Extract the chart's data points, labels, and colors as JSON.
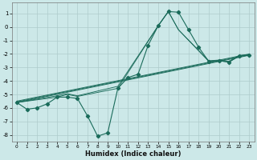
{
  "xlabel": "Humidex (Indice chaleur)",
  "bg_color": "#cce8e8",
  "grid_color": "#aecccc",
  "line_color": "#1a6b5a",
  "xlim": [
    -0.5,
    23.5
  ],
  "ylim": [
    -8.5,
    1.8
  ],
  "xticks": [
    0,
    1,
    2,
    3,
    4,
    5,
    6,
    7,
    8,
    9,
    10,
    11,
    12,
    13,
    14,
    15,
    16,
    17,
    18,
    19,
    20,
    21,
    22,
    23
  ],
  "yticks": [
    1,
    0,
    -1,
    -2,
    -3,
    -4,
    -5,
    -6,
    -7,
    -8
  ],
  "series_main": {
    "x": [
      0,
      1,
      2,
      3,
      4,
      5,
      6,
      7,
      8,
      9,
      10,
      11,
      12,
      13,
      14,
      15,
      16,
      17,
      18,
      19,
      20,
      21,
      22,
      23
    ],
    "y": [
      -5.6,
      -6.1,
      -6.0,
      -5.7,
      -5.2,
      -5.2,
      -5.3,
      -6.6,
      -8.1,
      -7.85,
      -4.55,
      -3.75,
      -3.5,
      -1.35,
      0.1,
      1.15,
      1.1,
      -0.2,
      -1.5,
      -2.55,
      -2.5,
      -2.6,
      -2.15,
      -2.1
    ]
  },
  "series_smooth": [
    {
      "x": [
        0,
        4,
        5,
        6,
        10,
        14,
        15,
        16,
        19,
        20,
        21,
        22,
        23
      ],
      "y": [
        -5.6,
        -5.2,
        -5.0,
        -5.15,
        -4.55,
        0.1,
        1.15,
        -0.2,
        -2.55,
        -2.5,
        -2.6,
        -2.15,
        -2.1
      ]
    },
    {
      "x": [
        0,
        4,
        5,
        6,
        10,
        14,
        15,
        16,
        19,
        20,
        21,
        22,
        23
      ],
      "y": [
        -5.6,
        -5.1,
        -4.95,
        -5.1,
        -4.4,
        0.1,
        1.15,
        -0.2,
        -2.5,
        -2.45,
        -2.55,
        -2.1,
        -2.05
      ]
    }
  ],
  "series_linear": [
    {
      "x": [
        0,
        23
      ],
      "y": [
        -5.6,
        -2.1
      ]
    },
    {
      "x": [
        0,
        23
      ],
      "y": [
        -5.55,
        -2.05
      ]
    },
    {
      "x": [
        0,
        23
      ],
      "y": [
        -5.5,
        -2.0
      ]
    }
  ]
}
